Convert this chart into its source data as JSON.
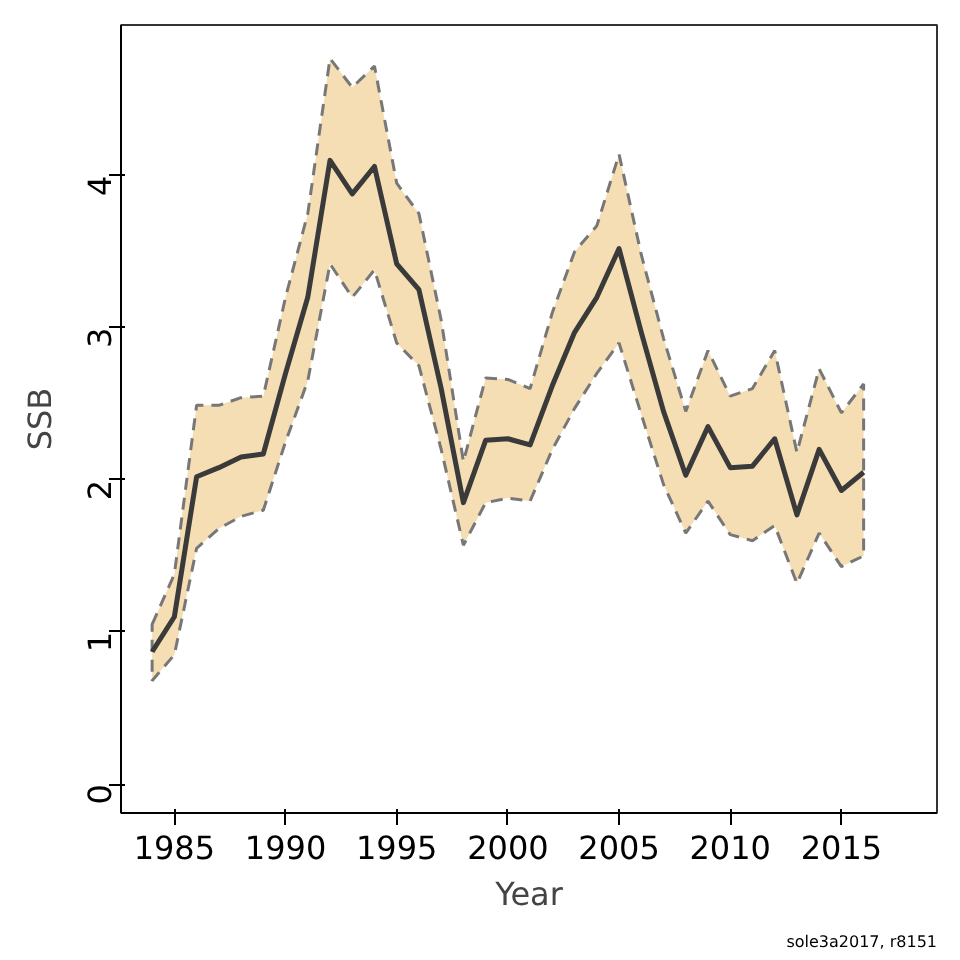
{
  "chart_data": {
    "type": "line",
    "xlabel": "Year",
    "ylabel": "SSB",
    "x": [
      1984,
      1985,
      1986,
      1987,
      1988,
      1989,
      1990,
      1991,
      1992,
      1993,
      1994,
      1995,
      1996,
      1997,
      1998,
      1999,
      2000,
      2001,
      2002,
      2003,
      2004,
      2005,
      2006,
      2007,
      2008,
      2009,
      2010,
      2011,
      2012,
      2013,
      2014,
      2015,
      2016
    ],
    "series": [
      {
        "color": "#3a3a3a",
        "values": [
          0.87,
          1.1,
          2.02,
          2.08,
          2.15,
          2.17,
          2.7,
          3.2,
          4.1,
          3.88,
          4.06,
          3.42,
          3.25,
          2.6,
          1.85,
          2.26,
          2.27,
          2.23,
          2.62,
          2.97,
          3.2,
          3.52,
          2.97,
          2.45,
          2.03,
          2.35,
          2.08,
          2.09,
          2.27,
          1.77,
          2.2,
          1.93,
          2.05
        ],
        "upper": [
          1.05,
          1.38,
          2.49,
          2.49,
          2.54,
          2.55,
          3.2,
          3.75,
          4.77,
          4.58,
          4.72,
          3.95,
          3.75,
          3.05,
          2.12,
          2.67,
          2.66,
          2.6,
          3.1,
          3.5,
          3.67,
          4.14,
          3.48,
          2.93,
          2.45,
          2.85,
          2.55,
          2.6,
          2.85,
          2.18,
          2.73,
          2.44,
          2.63
        ],
        "lower": [
          0.68,
          0.85,
          1.55,
          1.68,
          1.76,
          1.8,
          2.25,
          2.65,
          3.42,
          3.2,
          3.38,
          2.9,
          2.75,
          2.2,
          1.57,
          1.85,
          1.88,
          1.86,
          2.2,
          2.47,
          2.7,
          2.9,
          2.43,
          1.97,
          1.65,
          1.86,
          1.64,
          1.6,
          1.7,
          1.32,
          1.65,
          1.43,
          1.5
        ]
      }
    ],
    "xlim": [
      1982.6,
      2019.3
    ],
    "ylim": [
      -0.19,
      4.99
    ],
    "xticks": [
      1985,
      1990,
      1995,
      2000,
      2005,
      2010,
      2015
    ],
    "yticks": [
      0,
      1,
      2,
      3,
      4
    ],
    "grid": false,
    "marker": "none",
    "line_style": "solid",
    "annotations": [
      "sole3a2017, r8151"
    ]
  }
}
